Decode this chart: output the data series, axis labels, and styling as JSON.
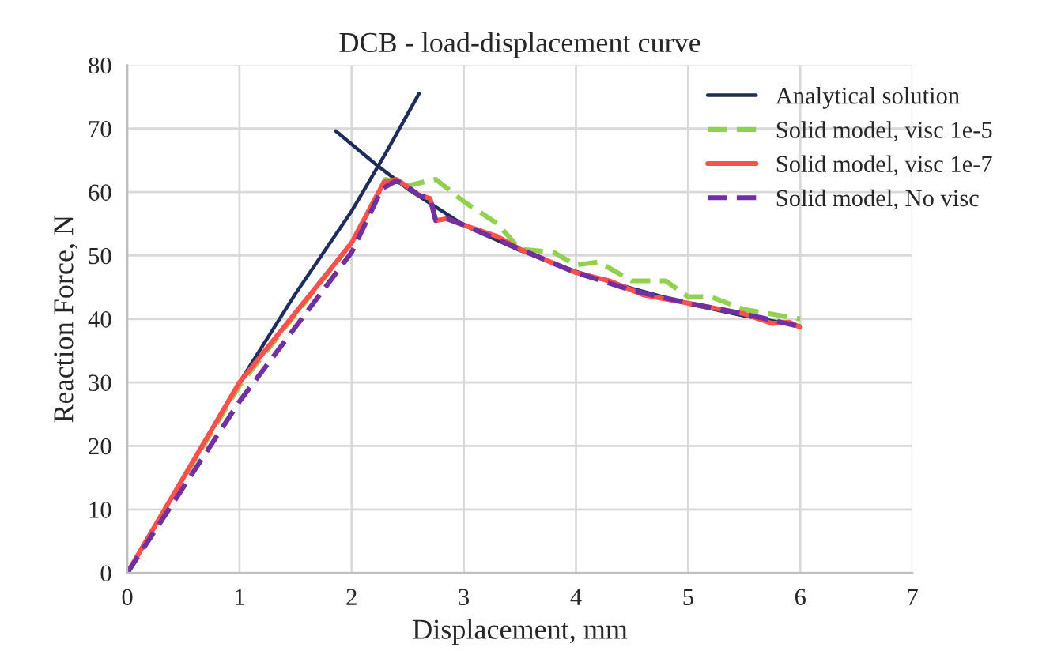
{
  "chart_data": {
    "type": "line",
    "title": "DCB - load-displacement curve",
    "xlabel": "Displacement, mm",
    "ylabel": "Reaction Force, N",
    "xlim": [
      0,
      7
    ],
    "xticks": [
      0,
      1,
      2,
      3,
      4,
      5,
      6,
      7
    ],
    "ylim": [
      0,
      80
    ],
    "yticks": [
      0,
      10,
      20,
      30,
      40,
      50,
      60,
      70,
      80
    ],
    "grid": true,
    "legend": "top right",
    "series": [
      {
        "name": "Analytical solution",
        "color": "#1f2d5c",
        "line_style": "solid",
        "x": [
          0,
          0.5,
          1,
          1.5,
          2,
          2.3,
          2.6,
          null,
          1.86,
          2.22,
          2.5,
          3,
          3.5,
          4,
          4.5,
          5,
          5.5,
          6
        ],
        "values": [
          0,
          15,
          30,
          44,
          57,
          66,
          75.5,
          null,
          69.6,
          64.3,
          60.5,
          54.8,
          50.8,
          47.5,
          44.8,
          42.4,
          40.5,
          38.9
        ]
      },
      {
        "name": "Solid model, visc 1e-5",
        "color": "#92d050",
        "line_style": "dashed",
        "x": [
          0,
          1,
          2,
          2.3,
          2.5,
          2.75,
          3,
          3.3,
          3.5,
          3.8,
          4,
          4.2,
          4.5,
          4.8,
          5,
          5.2,
          5.5,
          6
        ],
        "values": [
          0,
          29.5,
          52,
          62,
          61,
          62,
          58.5,
          55,
          51,
          50.5,
          48.5,
          49,
          46,
          46,
          43.5,
          43.5,
          41.5,
          40
        ]
      },
      {
        "name": "Solid model, visc 1e-7",
        "color": "#ff5050",
        "line_style": "solid",
        "x": [
          0,
          1,
          2,
          2.29,
          2.4,
          2.5,
          2.6,
          2.7,
          2.75,
          2.85,
          3,
          3.3,
          3.5,
          4,
          4.3,
          4.6,
          5,
          5.5,
          5.75,
          5.9,
          6
        ],
        "values": [
          0,
          30,
          52,
          61.6,
          62,
          60.8,
          59.5,
          59,
          55.5,
          55.8,
          54.8,
          53,
          51,
          47.3,
          46,
          43.8,
          42.5,
          40.8,
          39.3,
          39.5,
          38.7
        ]
      },
      {
        "name": "Solid model, No visc",
        "color": "#7030a0",
        "line_style": "dashed",
        "x": [
          0,
          1,
          2,
          2.27,
          2.4,
          2.5,
          2.6,
          2.7,
          2.75,
          2.85,
          3,
          3.5,
          4,
          4.5,
          5,
          5.5,
          6
        ],
        "values": [
          0,
          27,
          50.5,
          60.5,
          61.8,
          60.8,
          59.5,
          59,
          55.5,
          55.8,
          54.8,
          51,
          47.3,
          44.5,
          42.5,
          40.8,
          38.8
        ]
      }
    ]
  }
}
